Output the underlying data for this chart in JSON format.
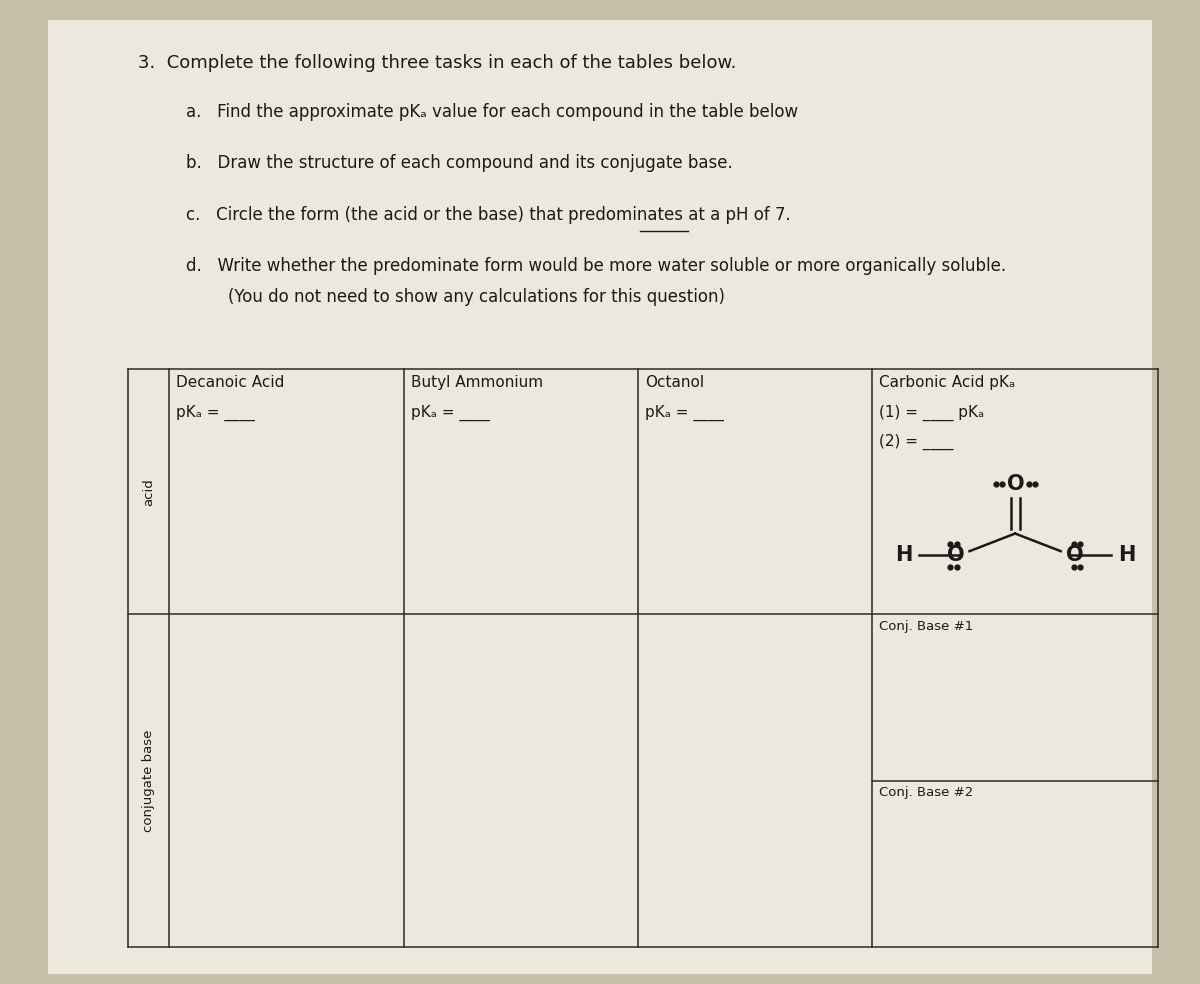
{
  "bg_color": "#c8bfaa",
  "paper_color": "#ede8de",
  "title": "3.  Complete the following three tasks in each of the tables below.",
  "instr_a": "a.   Find the approximate pKₐ value for each compound in the table below",
  "instr_b": "b.   Draw the structure of each compound and its conjugate base.",
  "instr_c_pre": "c.   Circle the form (the acid or the base) that predominates at a ",
  "instr_c_ul": "pH of 7",
  "instr_c_suf": ".",
  "instr_d1": "d.   Write whether the predominate form would be more water soluble or more organically soluble.",
  "instr_d2": "        (You do not need to show any calculations for this question)",
  "col1_h1": "Decanoic Acid",
  "col1_h2": "pKₐ = ____",
  "col2_h1": "Butyl Ammonium",
  "col2_h2": "pKₐ = ____",
  "col3_h1": "Octanol",
  "col3_h2": "pKₐ = ____",
  "col4_h1": "Carbonic Acid pKₐ",
  "col4_h2": "(1) = ____ pKₐ",
  "col4_h3": "(2) = ____",
  "label_acid": "acid",
  "label_cb": "conjugate base",
  "label_cb1": "Conj. Base #1",
  "label_cb2": "Conj. Base #2",
  "text_color": "#1a1a1a",
  "line_color": "#2a2a2a"
}
